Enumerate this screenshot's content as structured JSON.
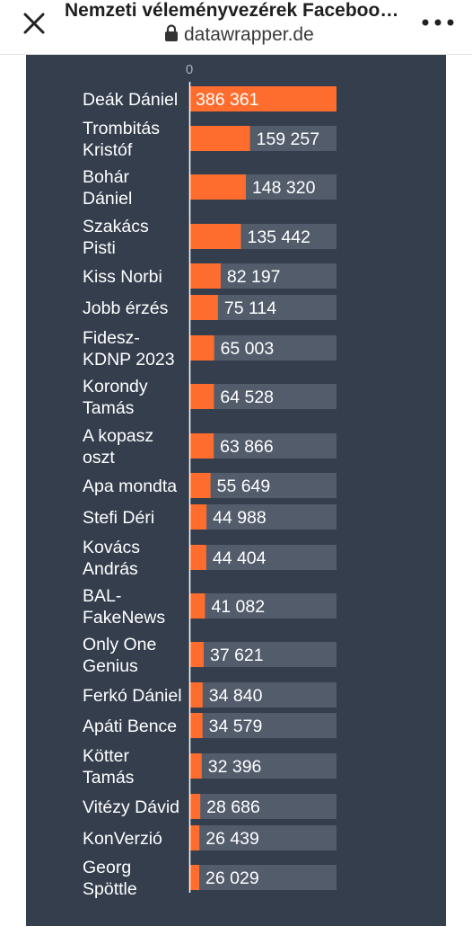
{
  "browser": {
    "title": "Nemzeti véleményvezérek Facebook…",
    "url": "datawrapper.de",
    "icons": {
      "close": "close-icon",
      "lock": "lock-icon",
      "menu": "more-vertical-icon"
    }
  },
  "chart_data": {
    "type": "bar",
    "orientation": "horizontal",
    "x_tick_labels": [
      "0"
    ],
    "categories": [
      "Deák Dániel",
      "Trombitás Kristóf",
      "Bohár Dániel",
      "Szakács Pisti",
      "Kiss Norbi",
      "Jobb érzés",
      "Fidesz-KDNP 2023",
      "Korondy Tamás",
      "A kopasz oszt",
      "Apa mondta",
      "Stefi Déri",
      "Kovács András",
      "BAL-FakeNews",
      "Only One Genius",
      "Ferkó Dániel",
      "Apáti Bence",
      "Kötter Tamás",
      "Vitézy Dávid",
      "KonVerzió",
      "Georg Spöttle"
    ],
    "category_lines": [
      [
        "Deák Dániel"
      ],
      [
        "Trombitás",
        "Kristóf"
      ],
      [
        "Bohár",
        "Dániel"
      ],
      [
        "Szakács",
        "Pisti"
      ],
      [
        "Kiss Norbi"
      ],
      [
        "Jobb érzés"
      ],
      [
        "Fidesz-",
        "KDNP 2023"
      ],
      [
        "Korondy",
        "Tamás"
      ],
      [
        "A kopasz",
        "oszt"
      ],
      [
        "Apa mondta"
      ],
      [
        "Stefi Déri"
      ],
      [
        "Kovács",
        "András"
      ],
      [
        "BAL-",
        "FakeNews"
      ],
      [
        "Only One",
        "Genius"
      ],
      [
        "Ferkó Dániel"
      ],
      [
        "Apáti Bence"
      ],
      [
        "Kötter",
        "Tamás"
      ],
      [
        "Vitézy Dávid"
      ],
      [
        "KonVerzió"
      ],
      [
        "Georg",
        "Spöttle"
      ]
    ],
    "values": [
      386361,
      159257,
      148320,
      135442,
      82197,
      75114,
      65003,
      64528,
      63866,
      55649,
      44988,
      44404,
      41082,
      37621,
      34840,
      34579,
      32396,
      28686,
      26439,
      26029
    ],
    "value_labels": [
      "386 361",
      "159 257",
      "148 320",
      "135 442",
      "82 197",
      "75 114",
      "65 003",
      "64 528",
      "63 866",
      "55 649",
      "44 988",
      "44 404",
      "41 082",
      "37 621",
      "34 840",
      "34 579",
      "32 396",
      "28 686",
      "26 439",
      "26 029"
    ],
    "xlim": [
      0,
      386361
    ],
    "colors": {
      "bar": "#ff6d2e",
      "track": "#525c6b",
      "background": "#343e4d",
      "text": "#ffffff",
      "axis_text": "#a8b0bb"
    }
  }
}
